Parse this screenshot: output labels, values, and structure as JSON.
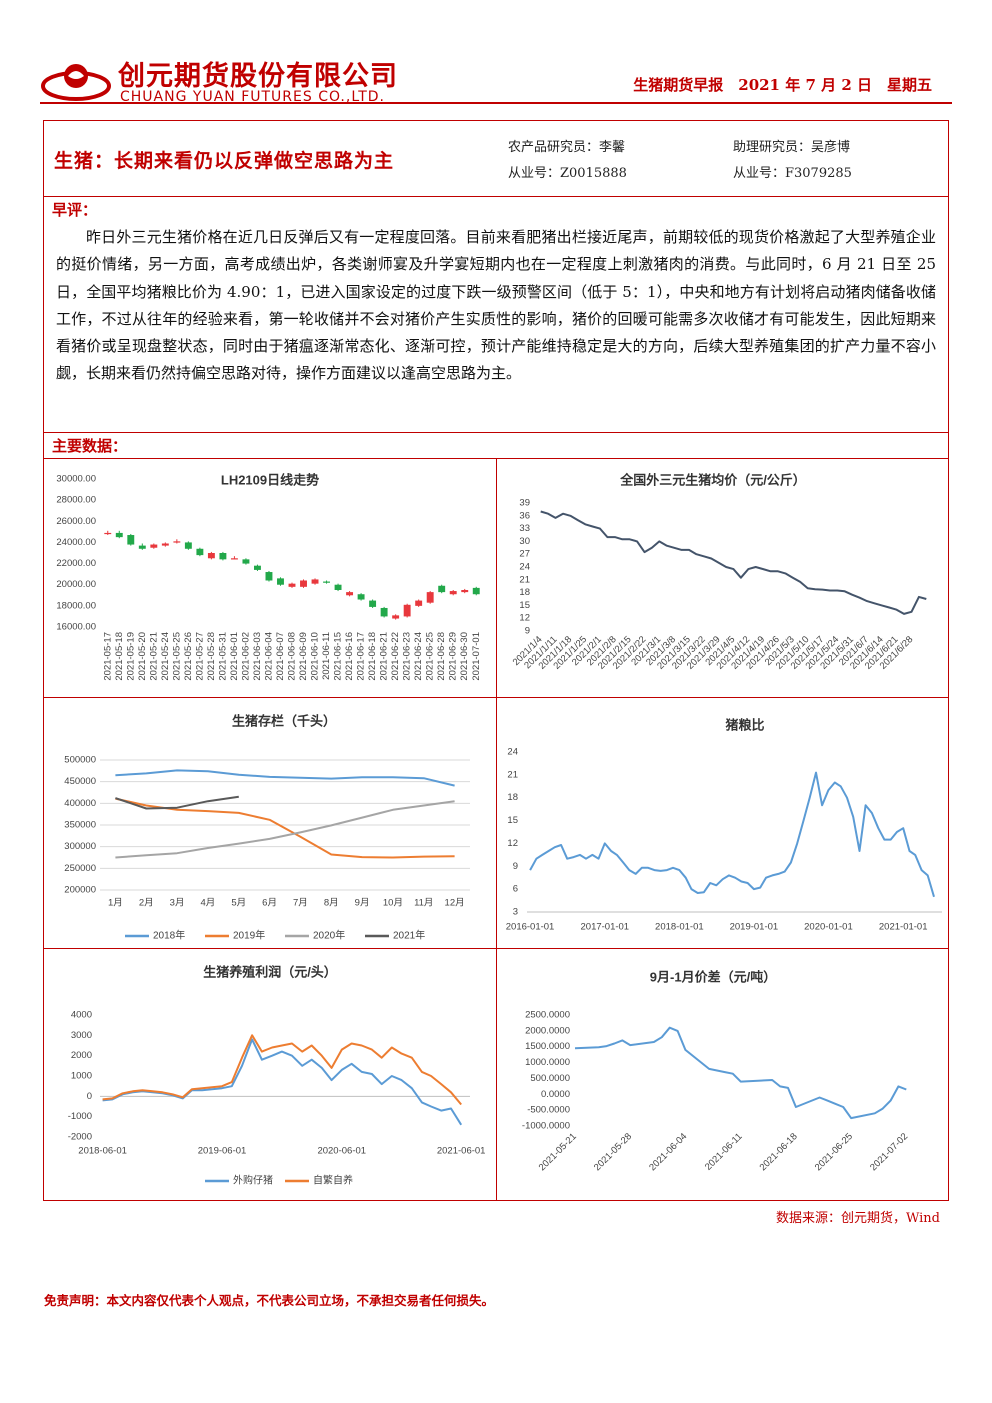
{
  "header": {
    "company_cn": "创元期货股份有限公司",
    "company_en": "CHUANG YUAN FUTURES CO.,LTD.",
    "report_info": "生猪期货早报　2021 年 7 月 2 日　星期五"
  },
  "title_box": {
    "title": "生猪：长期来看仍以反弹做空思路为主",
    "analyst_1": "农产品研究员：李馨",
    "license_1": "从业号：Z0015888",
    "analyst_2": "助理研究员：吴彦博",
    "license_2": "从业号：F3079285"
  },
  "comment": {
    "heading": "早评：",
    "text": "昨日外三元生猪价格在近几日反弹后又有一定程度回落。目前来看肥猪出栏接近尾声，前期较低的现货价格激起了大型养殖企业的挺价情绪，另一方面，高考成绩出炉，各类谢师宴及升学宴短期内也在一定程度上刺激猪肉的消费。与此同时，6 月 21 日至 25 日，全国平均猪粮比价为 4.90：1，已进入国家设定的过度下跌一级预警区间（低于 5：1），中央和地方有计划将启动猪肉储备收储工作，不过从往年的经验来看，第一轮收储并不会对猪价产生实质性的影响，猪价的回暖可能需多次收储才有可能发生，因此短期来看猪价或呈现盘整状态，同时由于猪瘟逐渐常态化、逐渐可控，预计产能维持稳定是大的方向，后续大型养殖集团的扩产力量不容小觑，长期来看仍然持偏空思路对待，操作方面建议以逢高空思路为主。"
  },
  "data_heading": "主要数据：",
  "source": "数据来源：创元期货，Wind",
  "disclaimer": "免责声明：本文内容仅代表个人观点，不代表公司立场，不承担交易者任何损失。",
  "chart_data": [
    {
      "type": "candlestick",
      "title": "LH2109日线走势",
      "categories": [
        "2021-05-17",
        "2021-05-18",
        "2021-05-19",
        "2021-05-20",
        "2021-05-21",
        "2021-05-24",
        "2021-05-25",
        "2021-05-26",
        "2021-05-27",
        "2021-05-28",
        "2021-05-31",
        "2021-06-01",
        "2021-06-02",
        "2021-06-03",
        "2021-06-04",
        "2021-06-07",
        "2021-06-08",
        "2021-06-09",
        "2021-06-10",
        "2021-06-11",
        "2021-06-15",
        "2021-06-16",
        "2021-06-17",
        "2021-06-18",
        "2021-06-21",
        "2021-06-22",
        "2021-06-23",
        "2021-06-24",
        "2021-06-25",
        "2021-06-28",
        "2021-06-29",
        "2021-06-30",
        "2021-07-01"
      ],
      "open": [
        24800,
        24900,
        24700,
        23700,
        23500,
        23700,
        24000,
        24000,
        23400,
        22500,
        23000,
        22500,
        22400,
        21800,
        21200,
        20600,
        19800,
        19800,
        20100,
        20300,
        20000,
        19000,
        19100,
        18500,
        17800,
        16800,
        17000,
        18000,
        18300,
        19900,
        19100,
        19300,
        19700
      ],
      "high": [
        25100,
        25100,
        24800,
        23900,
        23900,
        24000,
        24300,
        24100,
        23500,
        23100,
        23100,
        22700,
        22500,
        21900,
        21300,
        20700,
        20200,
        20500,
        20600,
        20400,
        20100,
        19400,
        19200,
        18600,
        17900,
        17200,
        18200,
        18600,
        19400,
        20000,
        19500,
        19600,
        19800
      ],
      "low": [
        24700,
        24400,
        23700,
        23300,
        23400,
        23600,
        23900,
        23300,
        22700,
        22400,
        22300,
        22400,
        21900,
        21300,
        20300,
        19900,
        19700,
        19700,
        20000,
        20100,
        19400,
        18900,
        18500,
        17800,
        16900,
        16700,
        16900,
        17900,
        18200,
        19200,
        19000,
        19200,
        19000
      ],
      "close": [
        24900,
        24500,
        23800,
        23400,
        23800,
        23900,
        24100,
        23400,
        22800,
        23000,
        22400,
        22500,
        22000,
        21400,
        20400,
        20000,
        20100,
        20400,
        20500,
        20200,
        19500,
        19300,
        18600,
        17900,
        17000,
        17100,
        18100,
        18500,
        19300,
        19300,
        19400,
        19500,
        19100
      ],
      "up_color": "#e8383d",
      "down_color": "#22a84a",
      "ylim": [
        16000,
        30000
      ],
      "yticks": [
        {
          "value": 16000,
          "label": "16000.00"
        },
        {
          "value": 18000,
          "label": "18000.00"
        },
        {
          "value": 20000,
          "label": "20000.00"
        },
        {
          "value": 22000,
          "label": "22000.00"
        },
        {
          "value": 24000,
          "label": "24000.00"
        },
        {
          "value": 26000,
          "label": "26000.00"
        },
        {
          "value": 28000,
          "label": "28000.00"
        },
        {
          "value": 30000,
          "label": "30000.00"
        }
      ],
      "grid": false
    },
    {
      "type": "line",
      "title": "全国外三元生猪均价（元/公斤）",
      "categories": [
        "2021/1/4",
        null,
        "2021/1/11",
        null,
        "2021/1/18",
        null,
        "2021/1/25",
        null,
        "2021/2/1",
        null,
        "2021/2/8",
        null,
        "2021/2/15",
        null,
        "2021/2/22",
        null,
        "2021/3/1",
        null,
        "2021/3/8",
        null,
        "2021/3/15",
        null,
        "2021/3/22",
        null,
        "2021/3/29",
        null,
        "2021/4/5",
        null,
        "2021/4/12",
        null,
        "2021/4/19",
        null,
        "2021/4/26",
        null,
        "2021/5/3",
        null,
        "2021/5/10",
        null,
        "2021/5/17",
        null,
        "2021/5/24",
        null,
        "2021/5/31",
        null,
        "2021/6/7",
        null,
        "2021/6/14",
        null,
        "2021/6/21",
        null,
        "2021/6/28",
        null,
        null
      ],
      "values": [
        37,
        36.5,
        35.5,
        36.5,
        36,
        35,
        34,
        33.5,
        33,
        31,
        31,
        30.5,
        30.5,
        30,
        27.5,
        28.5,
        30,
        29,
        28.5,
        28,
        28,
        27,
        26.5,
        26,
        25,
        24,
        23.5,
        21.5,
        23.5,
        24,
        23.5,
        23,
        23,
        22.5,
        21.5,
        20.5,
        19,
        18.8,
        18.7,
        18.5,
        18.5,
        18.3,
        17.5,
        16.8,
        16,
        15.5,
        15,
        14.5,
        14,
        13,
        13.5,
        17,
        16.5
      ],
      "color": "#44546a",
      "ylim": [
        9,
        39
      ],
      "yticks": [
        9,
        12,
        15,
        18,
        21,
        24,
        27,
        30,
        33,
        36,
        39
      ],
      "grid": false
    },
    {
      "type": "line",
      "title": "生猪存栏（千头）",
      "categories": [
        "1月",
        "2月",
        "3月",
        "4月",
        "5月",
        "6月",
        "7月",
        "8月",
        "9月",
        "10月",
        "11月",
        "12月"
      ],
      "series": [
        {
          "name": "2018年",
          "color": "#5b9bd5",
          "values": [
            465000,
            469000,
            476000,
            474000,
            466000,
            461000,
            459000,
            457000,
            460000,
            460000,
            458000,
            441000
          ]
        },
        {
          "name": "2019年",
          "color": "#ed7d31",
          "values": [
            411000,
            395000,
            385000,
            382000,
            378000,
            362000,
            323000,
            282000,
            276000,
            275000,
            277000,
            278000
          ]
        },
        {
          "name": "2020年",
          "color": "#a5a5a5",
          "values": [
            275000,
            280000,
            285000,
            297000,
            307000,
            318000,
            333000,
            349000,
            367000,
            385000,
            395000,
            405000
          ]
        },
        {
          "name": "2021年",
          "color": "#595959",
          "values": [
            412000,
            388000,
            390000,
            405000,
            415000,
            null,
            null,
            null,
            null,
            null,
            null,
            null
          ]
        }
      ],
      "ylim": [
        200000,
        500000
      ],
      "yticks": [
        200000,
        250000,
        300000,
        350000,
        400000,
        450000,
        500000
      ],
      "grid": true,
      "legend": "bottom"
    },
    {
      "type": "line",
      "title": "猪粮比",
      "x": [
        "2016-01-01",
        "2016-02-01",
        "2016-03-01",
        "2016-04-01",
        "2016-05-01",
        "2016-06-01",
        "2016-07-01",
        "2016-08-01",
        "2016-09-01",
        "2016-10-01",
        "2016-11-01",
        "2016-12-01",
        "2017-01-01",
        "2017-02-01",
        "2017-03-01",
        "2017-04-01",
        "2017-05-01",
        "2017-06-01",
        "2017-07-01",
        "2017-08-01",
        "2017-09-01",
        "2017-10-01",
        "2017-11-01",
        "2017-12-01",
        "2018-01-01",
        "2018-02-01",
        "2018-03-01",
        "2018-04-01",
        "2018-05-01",
        "2018-06-01",
        "2018-07-01",
        "2018-08-01",
        "2018-09-01",
        "2018-10-01",
        "2018-11-01",
        "2018-12-01",
        "2019-01-01",
        "2019-02-01",
        "2019-03-01",
        "2019-04-01",
        "2019-05-01",
        "2019-06-01",
        "2019-07-01",
        "2019-08-01",
        "2019-09-01",
        "2019-10-01",
        "2019-11-01",
        "2019-12-01",
        "2020-01-01",
        "2020-02-01",
        "2020-03-01",
        "2020-04-01",
        "2020-05-01",
        "2020-06-01",
        "2020-07-01",
        "2020-08-01",
        "2020-09-01",
        "2020-10-01",
        "2020-11-01",
        "2020-12-01",
        "2021-01-01",
        "2021-02-01",
        "2021-03-01",
        "2021-04-01",
        "2021-05-01",
        "2021-06-01"
      ],
      "values": [
        8.5,
        10,
        10.5,
        11,
        11.5,
        11.8,
        10,
        10.2,
        10.5,
        10,
        10.5,
        10,
        12,
        11,
        10.5,
        9.5,
        8.5,
        8,
        8.8,
        8.8,
        8.5,
        8.4,
        8.5,
        8.8,
        8.5,
        7.5,
        6,
        5.5,
        5.6,
        6.8,
        6.5,
        7.3,
        7.8,
        7.5,
        7,
        6.8,
        6,
        6.2,
        7.5,
        7.8,
        8,
        8.3,
        9.5,
        12,
        15,
        18,
        21.3,
        17,
        19,
        20,
        19.5,
        18,
        15.5,
        11,
        17,
        16,
        14,
        12.5,
        12.5,
        13.5,
        14,
        11,
        10.5,
        8.5,
        7.8,
        5
      ],
      "color": "#5b9bd5",
      "xlim": [
        "2015-12-17",
        "2021-07-10"
      ],
      "xticks": [
        "2016-01-01",
        "2017-01-01",
        "2018-01-01",
        "2019-01-01",
        "2020-01-01",
        "2021-01-01"
      ],
      "ylim": [
        3,
        24
      ],
      "yticks": [
        3,
        6,
        9,
        12,
        15,
        18,
        21,
        24
      ],
      "grid": false
    },
    {
      "type": "line",
      "title": "生猪养殖利润（元/头）",
      "x": [
        "2018-06-01",
        "2018-07-01",
        "2018-08-01",
        "2018-09-01",
        "2018-10-01",
        "2018-11-01",
        "2018-12-01",
        "2019-01-01",
        "2019-02-01",
        "2019-03-01",
        "2019-04-01",
        "2019-05-01",
        "2019-06-01",
        "2019-07-01",
        "2019-08-01",
        "2019-09-01",
        "2019-10-01",
        "2019-11-01",
        "2019-12-01",
        "2020-01-01",
        "2020-02-01",
        "2020-03-01",
        "2020-04-01",
        "2020-05-01",
        "2020-06-01",
        "2020-07-01",
        "2020-08-01",
        "2020-09-01",
        "2020-10-01",
        "2020-11-01",
        "2020-12-01",
        "2021-01-01",
        "2021-02-01",
        "2021-03-01",
        "2021-04-01",
        "2021-05-01",
        "2021-06-01"
      ],
      "series": [
        {
          "name": "外购仔猪",
          "color": "#5b9bd5",
          "values": [
            -200,
            -150,
            100,
            200,
            250,
            200,
            150,
            50,
            -100,
            300,
            300,
            350,
            400,
            500,
            1500,
            2800,
            1800,
            2000,
            2200,
            2000,
            1500,
            1800,
            1400,
            800,
            1300,
            1600,
            1200,
            1100,
            600,
            1000,
            800,
            400,
            -300,
            -500,
            -700,
            -600,
            -1400
          ]
        },
        {
          "name": "自繁自养",
          "color": "#ed7d31",
          "values": [
            -150,
            -100,
            150,
            250,
            300,
            250,
            200,
            100,
            -50,
            350,
            400,
            450,
            500,
            700,
            1900,
            3000,
            2200,
            2400,
            2500,
            2600,
            2200,
            2500,
            2000,
            1400,
            2300,
            2600,
            2500,
            2300,
            1900,
            2400,
            2100,
            1900,
            1200,
            1000,
            600,
            200,
            -400
          ]
        }
      ],
      "xlim": [
        "2018-05-24",
        "2021-06-28"
      ],
      "xticks": [
        "2018-06-01",
        "2019-06-01",
        "2020-06-01",
        "2021-06-01"
      ],
      "ylim": [
        -2000,
        4000
      ],
      "yticks": [
        -2000,
        -1000,
        0,
        1000,
        2000,
        3000,
        4000
      ],
      "grid": false,
      "legend": "bottom"
    },
    {
      "type": "line",
      "title": "9月-1月价差（元/吨）",
      "x": [
        "2021-05-21",
        "2021-05-24",
        "2021-05-25",
        "2021-05-26",
        "2021-05-27",
        "2021-05-28",
        "2021-05-31",
        "2021-06-01",
        "2021-06-02",
        "2021-06-03",
        "2021-06-04",
        "2021-06-07",
        "2021-06-08",
        "2021-06-09",
        "2021-06-10",
        "2021-06-11",
        "2021-06-15",
        "2021-06-16",
        "2021-06-17",
        "2021-06-18",
        "2021-06-21",
        "2021-06-22",
        "2021-06-23",
        "2021-06-24",
        "2021-06-25",
        "2021-06-28",
        "2021-06-29",
        "2021-06-30",
        "2021-07-01",
        "2021-07-02"
      ],
      "values": [
        1450,
        1480,
        1520,
        1600,
        1700,
        1550,
        1650,
        1800,
        2100,
        2000,
        1400,
        800,
        750,
        700,
        650,
        400,
        450,
        250,
        200,
        -400,
        -100,
        -200,
        -300,
        -400,
        -750,
        -600,
        -450,
        -200,
        250,
        150
      ],
      "color": "#5b9bd5",
      "xlim": [
        "2021-05-21",
        "2021-07-05"
      ],
      "xticks": [
        "2021-05-21",
        "2021-05-28",
        "2021-06-04",
        "2021-06-11",
        "2021-06-18",
        "2021-06-25",
        "2021-07-02"
      ],
      "ylim": [
        -1000,
        2500
      ],
      "yticks": [
        {
          "value": -1000,
          "label": "-1000.0000"
        },
        {
          "value": -500,
          "label": "-500.0000"
        },
        {
          "value": 0,
          "label": "0.0000"
        },
        {
          "value": 500,
          "label": "500.0000"
        },
        {
          "value": 1000,
          "label": "1000.0000"
        },
        {
          "value": 1500,
          "label": "1500.0000"
        },
        {
          "value": 2000,
          "label": "2000.0000"
        },
        {
          "value": 2500,
          "label": "2500.0000"
        }
      ],
      "grid": false
    }
  ]
}
